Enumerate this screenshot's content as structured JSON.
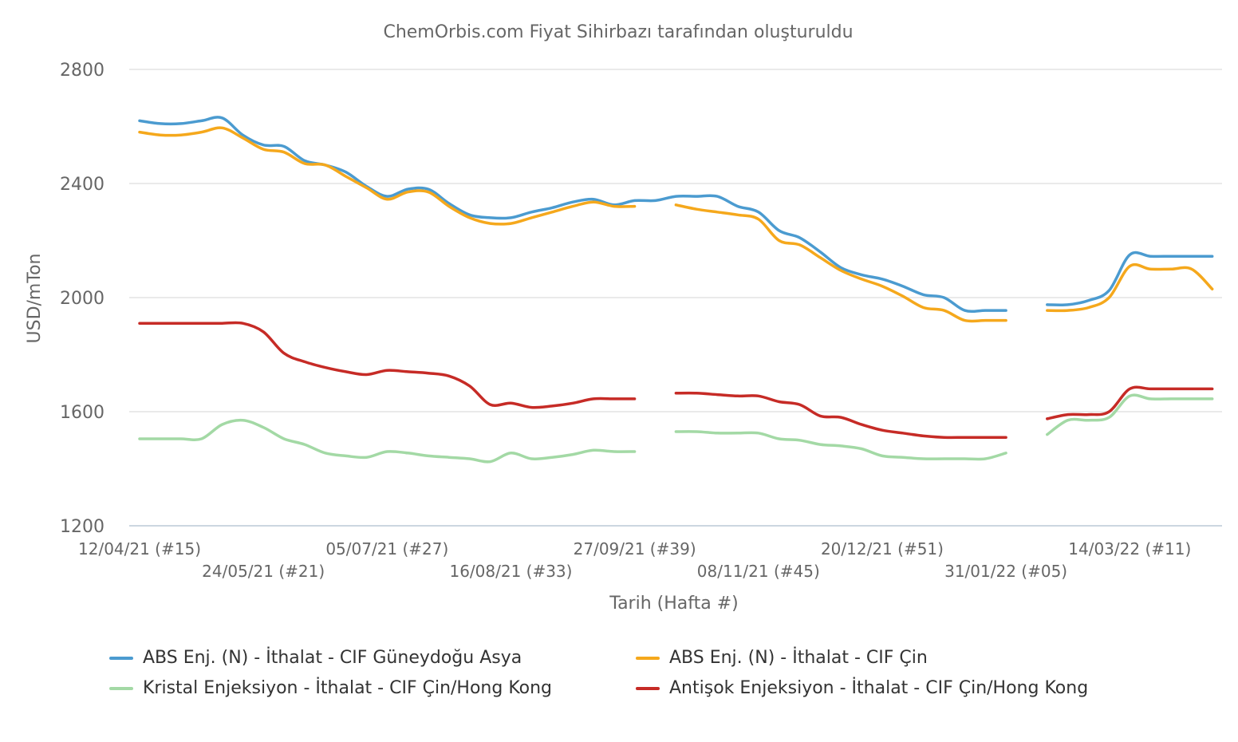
{
  "chart_data": {
    "type": "line",
    "title": "ChemOrbis.com Fiyat Sihirbazı tarafından oluşturuldu",
    "xlabel": "Tarih (Hafta #)",
    "ylabel": "USD/mTon",
    "ylim": [
      1200,
      2800
    ],
    "yticks": [
      "1200",
      "1600",
      "2000",
      "2400",
      "2800"
    ],
    "xtick_labels": [
      "12/04/21 (#15)",
      "24/05/21 (#21)",
      "05/07/21 (#27)",
      "16/08/21 (#33)",
      "27/09/21 (#39)",
      "08/11/21 (#45)",
      "20/12/21 (#51)",
      "31/01/22 (#05)",
      "14/03/22 (#11)"
    ],
    "grid": true,
    "legend_position": "bottom",
    "x": [
      "12/04/21",
      "19/04/21",
      "26/04/21",
      "03/05/21",
      "10/05/21",
      "17/05/21",
      "24/05/21",
      "31/05/21",
      "07/06/21",
      "14/06/21",
      "21/06/21",
      "28/06/21",
      "05/07/21",
      "12/07/21",
      "19/07/21",
      "26/07/21",
      "02/08/21",
      "09/08/21",
      "16/08/21",
      "23/08/21",
      "30/08/21",
      "06/09/21",
      "13/09/21",
      "20/09/21",
      "27/09/21",
      "04/10/21",
      "11/10/21",
      "18/10/21",
      "25/10/21",
      "01/11/21",
      "08/11/21",
      "15/11/21",
      "22/11/21",
      "29/11/21",
      "06/12/21",
      "13/12/21",
      "20/12/21",
      "27/12/21",
      "03/01/22",
      "10/01/22",
      "17/01/22",
      "24/01/22",
      "31/01/22",
      "07/02/22",
      "14/02/22",
      "21/02/22",
      "28/02/22",
      "07/03/22",
      "14/03/22",
      "21/03/22",
      "28/03/22",
      "04/04/22",
      "11/04/22"
    ],
    "series": [
      {
        "name": "ABS Enj. (N) - İthalat - CIF Güneydoğu Asya",
        "color": "#4b9bd0",
        "values": [
          2620,
          2610,
          2610,
          2620,
          2630,
          2570,
          2535,
          2530,
          2480,
          2465,
          2440,
          2390,
          2355,
          2380,
          2380,
          2330,
          2290,
          2280,
          2280,
          2300,
          2315,
          2335,
          2345,
          2325,
          2340,
          2340,
          2355,
          2355,
          2355,
          2320,
          2300,
          2235,
          2210,
          2160,
          2105,
          2080,
          2065,
          2040,
          2010,
          2000,
          1955,
          1955,
          1955,
          null,
          1975,
          1975,
          1990,
          2025,
          2150,
          2145,
          2145,
          2145,
          2145
        ]
      },
      {
        "name": "ABS Enj. (N) - İthalat - CIF Çin",
        "color": "#f5a81c",
        "values": [
          2580,
          2570,
          2570,
          2580,
          2595,
          2560,
          2520,
          2510,
          2470,
          2465,
          2425,
          2385,
          2345,
          2370,
          2370,
          2320,
          2280,
          2260,
          2260,
          2280,
          2300,
          2320,
          2335,
          2320,
          2320,
          null,
          2325,
          2310,
          2300,
          2290,
          2275,
          2200,
          2185,
          2140,
          2095,
          2065,
          2040,
          2005,
          1965,
          1955,
          1920,
          1920,
          1920,
          null,
          1955,
          1955,
          1965,
          2000,
          2110,
          2100,
          2100,
          2100,
          2030
        ]
      },
      {
        "name": "Kristal Enjeksiyon - İthalat - CIF Çin/Hong Kong",
        "color": "#a3d9a5",
        "values": [
          1505,
          1505,
          1505,
          1505,
          1555,
          1570,
          1545,
          1505,
          1485,
          1455,
          1445,
          1440,
          1460,
          1455,
          1445,
          1440,
          1435,
          1425,
          1455,
          1435,
          1440,
          1450,
          1465,
          1460,
          1460,
          null,
          1530,
          1530,
          1525,
          1525,
          1525,
          1505,
          1500,
          1485,
          1480,
          1470,
          1445,
          1440,
          1435,
          1435,
          1435,
          1435,
          1455,
          null,
          1520,
          1570,
          1570,
          1580,
          1655,
          1645,
          1645,
          1645,
          1645
        ]
      },
      {
        "name": "Antişok Enjeksiyon - İthalat - CIF Çin/Hong Kong",
        "color": "#c62b26",
        "values": [
          1910,
          1910,
          1910,
          1910,
          1910,
          1910,
          1880,
          1805,
          1775,
          1755,
          1740,
          1730,
          1745,
          1740,
          1735,
          1725,
          1690,
          1625,
          1630,
          1615,
          1620,
          1630,
          1645,
          1645,
          1645,
          null,
          1665,
          1665,
          1660,
          1655,
          1655,
          1635,
          1625,
          1585,
          1580,
          1555,
          1535,
          1525,
          1515,
          1510,
          1510,
          1510,
          1510,
          null,
          1575,
          1590,
          1590,
          1600,
          1680,
          1680,
          1680,
          1680,
          1680
        ]
      }
    ]
  }
}
